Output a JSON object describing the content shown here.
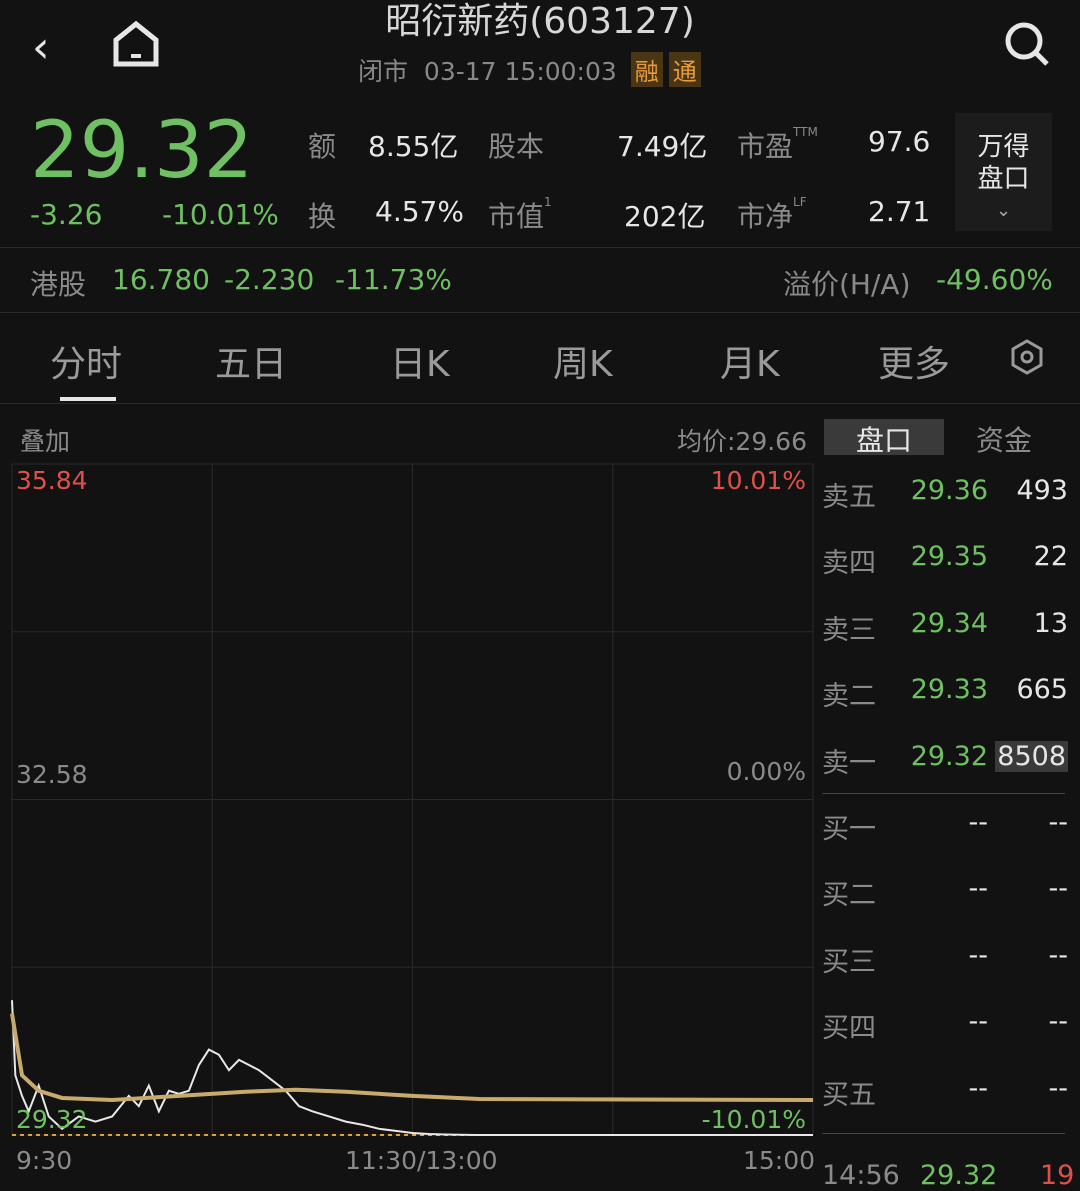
{
  "header": {
    "title": "昭衍新药(603127)",
    "status": "闭市",
    "datetime": "03-17 15:00:03",
    "tags": [
      "融",
      "通"
    ]
  },
  "quote": {
    "price": "29.32",
    "change": "-3.26",
    "change_pct": "-10.01%",
    "stats": [
      {
        "label": "额",
        "value": "8.55亿"
      },
      {
        "label": "股本",
        "value": "7.49亿"
      },
      {
        "label": "市盈",
        "sup": "TTM",
        "value": "97.6"
      },
      {
        "label": "换",
        "value": "4.57%"
      },
      {
        "label": "市值",
        "sup": "1",
        "value": "202亿"
      },
      {
        "label": "市净",
        "sup": "LF",
        "value": "2.71"
      }
    ],
    "wind_button": [
      "万得",
      "盘口"
    ]
  },
  "hk": {
    "label": "港股",
    "price": "16.780",
    "change": "-2.230",
    "pct": "-11.73%",
    "premium_label": "溢价(H/A)",
    "premium": "-49.60%"
  },
  "tabs": [
    "分时",
    "五日",
    "日K",
    "周K",
    "月K",
    "更多"
  ],
  "chart_header": {
    "overlay": "叠加",
    "avg": "均价:29.66"
  },
  "orderbook": {
    "tabs": [
      "盘口",
      "资金"
    ],
    "asks": [
      {
        "l": "卖五",
        "p": "29.36",
        "v": "493"
      },
      {
        "l": "卖四",
        "p": "29.35",
        "v": "22"
      },
      {
        "l": "卖三",
        "p": "29.34",
        "v": "13"
      },
      {
        "l": "卖二",
        "p": "29.33",
        "v": "665"
      },
      {
        "l": "卖一",
        "p": "29.32",
        "v": "8508"
      }
    ],
    "bids": [
      {
        "l": "买一",
        "p": "--",
        "v": "--"
      },
      {
        "l": "买二",
        "p": "--",
        "v": "--"
      },
      {
        "l": "买三",
        "p": "--",
        "v": "--"
      },
      {
        "l": "买四",
        "p": "--",
        "v": "--"
      },
      {
        "l": "买五",
        "p": "--",
        "v": "--"
      }
    ],
    "trade": {
      "time": "14:56",
      "price": "29.32",
      "vol": "19"
    }
  },
  "chart_data": {
    "type": "line",
    "ylim": [
      29.32,
      35.84
    ],
    "y_labels": {
      "top": "35.84",
      "mid": "32.58",
      "bottom": "29.32"
    },
    "pct_labels": {
      "top": "10.01%",
      "mid": "0.00%",
      "bottom": "-10.01%"
    },
    "x_labels": [
      "9:30",
      "11:30/13:00",
      "15:00"
    ],
    "x_range_minutes": [
      0,
      240
    ],
    "series": [
      {
        "color": "#e8e8e8",
        "points": [
          [
            0,
            30.63
          ],
          [
            1,
            29.9
          ],
          [
            3,
            29.7
          ],
          [
            5,
            29.55
          ],
          [
            8,
            29.8
          ],
          [
            11,
            29.5
          ],
          [
            15,
            29.38
          ],
          [
            20,
            29.5
          ],
          [
            25,
            29.45
          ],
          [
            30,
            29.5
          ],
          [
            35,
            29.7
          ],
          [
            38,
            29.6
          ],
          [
            41,
            29.8
          ],
          [
            44,
            29.55
          ],
          [
            47,
            29.75
          ],
          [
            50,
            29.72
          ],
          [
            53,
            29.75
          ],
          [
            56,
            30.0
          ],
          [
            59,
            30.15
          ],
          [
            62,
            30.1
          ],
          [
            65,
            29.95
          ],
          [
            68,
            30.05
          ],
          [
            71,
            30.0
          ],
          [
            74,
            29.95
          ],
          [
            78,
            29.85
          ],
          [
            82,
            29.75
          ],
          [
            86,
            29.6
          ],
          [
            90,
            29.55
          ],
          [
            95,
            29.5
          ],
          [
            100,
            29.45
          ],
          [
            105,
            29.42
          ],
          [
            110,
            29.38
          ],
          [
            115,
            29.36
          ],
          [
            120,
            29.34
          ],
          [
            125,
            29.33
          ],
          [
            130,
            29.325
          ],
          [
            139,
            29.32
          ],
          [
            240,
            29.32
          ]
        ]
      },
      {
        "color": "#c9aa6e",
        "points": [
          [
            0,
            30.5
          ],
          [
            3,
            29.9
          ],
          [
            8,
            29.75
          ],
          [
            15,
            29.68
          ],
          [
            30,
            29.66
          ],
          [
            50,
            29.7
          ],
          [
            70,
            29.74
          ],
          [
            85,
            29.76
          ],
          [
            100,
            29.74
          ],
          [
            120,
            29.7
          ],
          [
            140,
            29.67
          ],
          [
            240,
            29.66
          ]
        ]
      }
    ]
  }
}
